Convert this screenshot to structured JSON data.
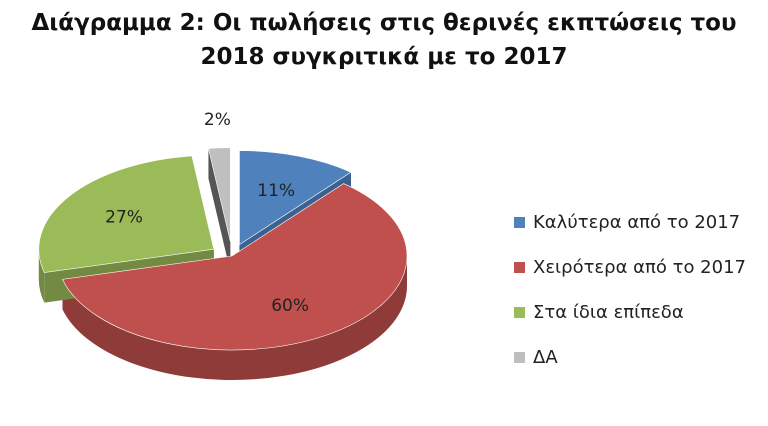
{
  "title": {
    "line1": "Διάγραμμα 2: Οι πωλήσεις στις θερινές εκπτώσεις του",
    "line2": "2018 συγκριτικά με το 2017"
  },
  "chart_data": {
    "type": "pie",
    "title": "Διάγραμμα 2: Οι πωλήσεις στις θερινές εκπτώσεις του 2018 συγκριτικά με το 2017",
    "style": "3d-exploded",
    "legend_position": "right",
    "slices": [
      {
        "label": "Καλύτερα από το 2017",
        "value": 11,
        "display": "11%",
        "color": "#4F81BD",
        "side": "#3A6190"
      },
      {
        "label": "Χειρότερα από το 2017",
        "value": 60,
        "display": "60%",
        "color": "#C0504D",
        "side": "#8E3B39"
      },
      {
        "label": "Στα ίδια επίπεδα",
        "value": 27,
        "display": "27%",
        "color": "#9BBB59",
        "side": "#728A41"
      },
      {
        "label": "ΔΑ",
        "value": 2,
        "display": "2%",
        "color": "#BFBFBF",
        "side": "#555555"
      }
    ]
  }
}
